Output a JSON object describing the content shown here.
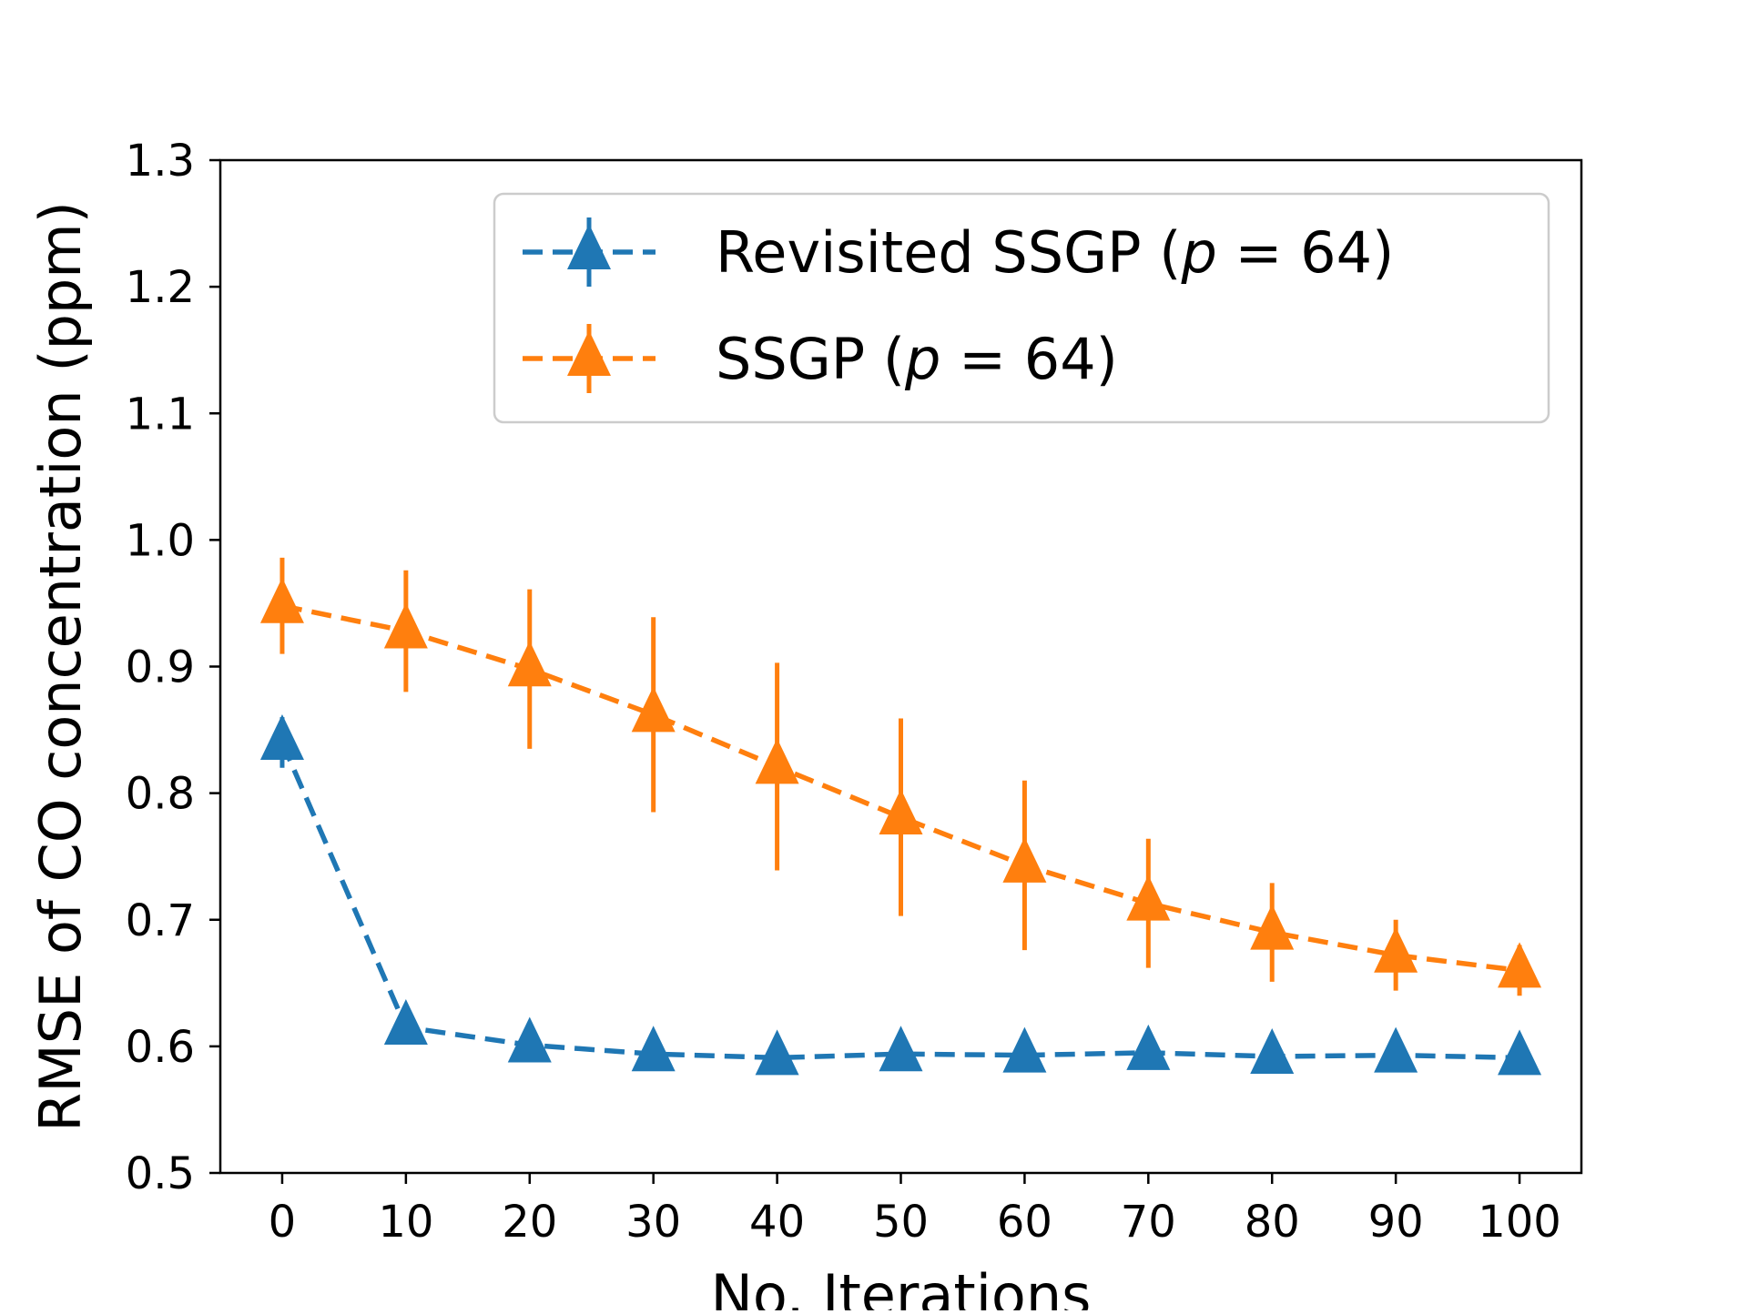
{
  "chart_data": {
    "type": "line",
    "title": "",
    "xlabel": "No. Iterations",
    "ylabel": "RMSE of CO concentration (ppm)",
    "x": [
      0,
      10,
      20,
      30,
      40,
      50,
      60,
      70,
      80,
      90,
      100
    ],
    "x_ticks": [
      "0",
      "10",
      "20",
      "30",
      "40",
      "50",
      "60",
      "70",
      "80",
      "90",
      "100"
    ],
    "y_ticks": [
      "0.5",
      "0.6",
      "0.7",
      "0.8",
      "0.9",
      "1.0",
      "1.1",
      "1.2",
      "1.3"
    ],
    "xlim": [
      -5,
      105
    ],
    "ylim": [
      0.5,
      1.3
    ],
    "grid": false,
    "legend_position": "top-right",
    "series": [
      {
        "name": "Revisited SSGP (p = 64)",
        "legend": {
          "prefix": "Revisited SSGP (",
          "var": "p",
          "eq": " = 64)"
        },
        "color": "#1f77b4",
        "marker": "triangle",
        "linestyle": "dashed",
        "values": [
          0.84,
          0.615,
          0.601,
          0.594,
          0.591,
          0.594,
          0.593,
          0.595,
          0.592,
          0.593,
          0.591
        ],
        "errors": [
          0.02,
          0.003,
          0.003,
          0.002,
          0.002,
          0.002,
          0.002,
          0.002,
          0.002,
          0.002,
          0.002
        ]
      },
      {
        "name": "SSGP (p = 64)",
        "legend": {
          "prefix": "SSGP (",
          "var": "p",
          "eq": " = 64)"
        },
        "color": "#ff7f0e",
        "marker": "triangle",
        "linestyle": "dashed",
        "values": [
          0.948,
          0.928,
          0.898,
          0.862,
          0.821,
          0.781,
          0.743,
          0.713,
          0.69,
          0.672,
          0.66
        ],
        "errors": [
          0.038,
          0.048,
          0.063,
          0.077,
          0.082,
          0.078,
          0.067,
          0.051,
          0.039,
          0.028,
          0.02
        ]
      }
    ]
  }
}
